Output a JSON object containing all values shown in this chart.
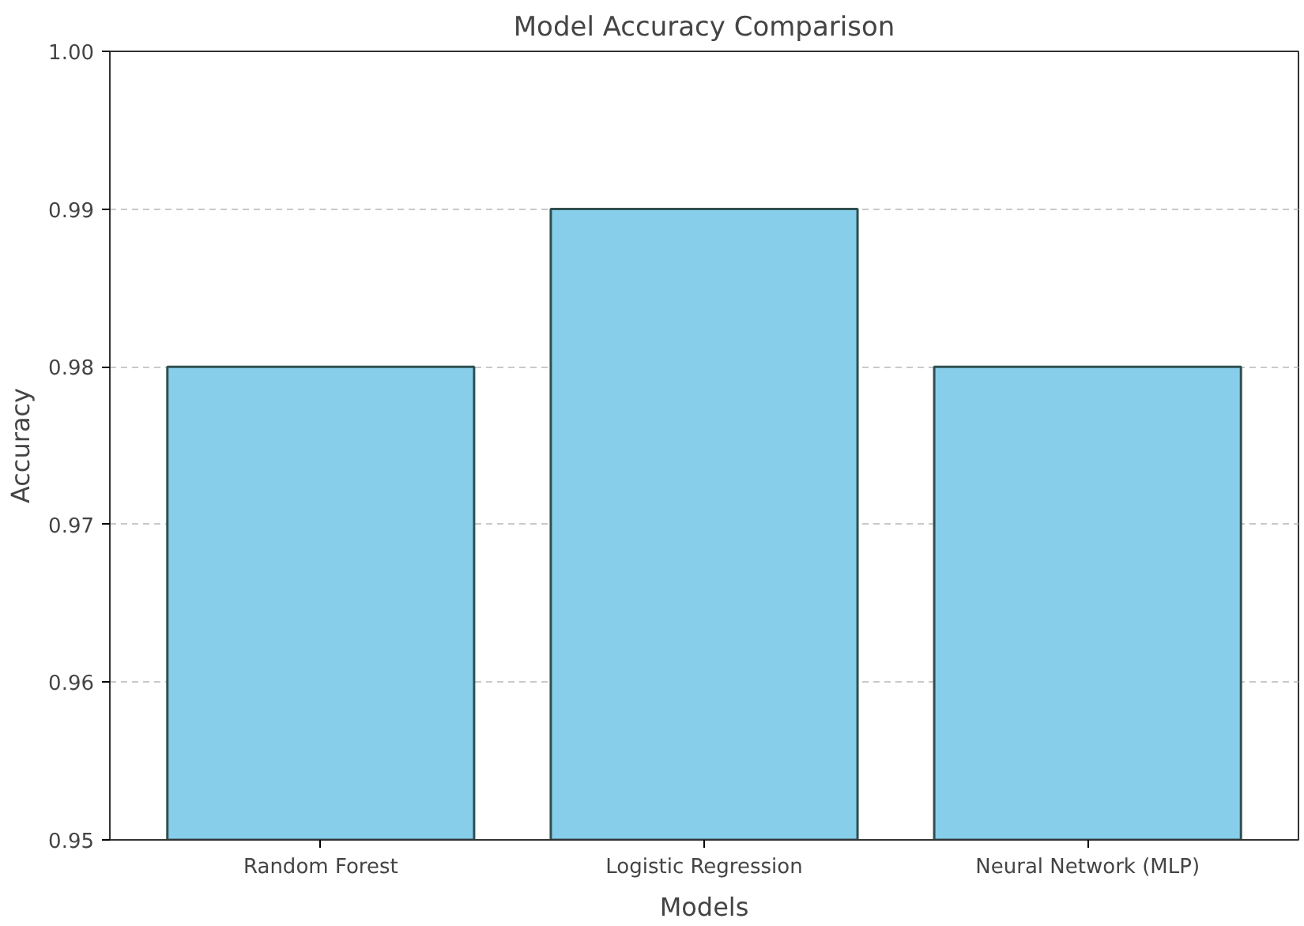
{
  "chart_data": {
    "type": "bar",
    "title": "Model Accuracy Comparison",
    "xlabel": "Models",
    "ylabel": "Accuracy",
    "categories": [
      "Random Forest",
      "Logistic Regression",
      "Neural Network (MLP)"
    ],
    "values": [
      0.98,
      0.99,
      0.98
    ],
    "color": "#87ceeb",
    "ylim": [
      0.95,
      1.0
    ],
    "yticks": [
      0.95,
      0.96,
      0.97,
      0.98,
      0.99,
      {
        "value": 1.0,
        "label": "1.00"
      }
    ],
    "grid": "y"
  }
}
